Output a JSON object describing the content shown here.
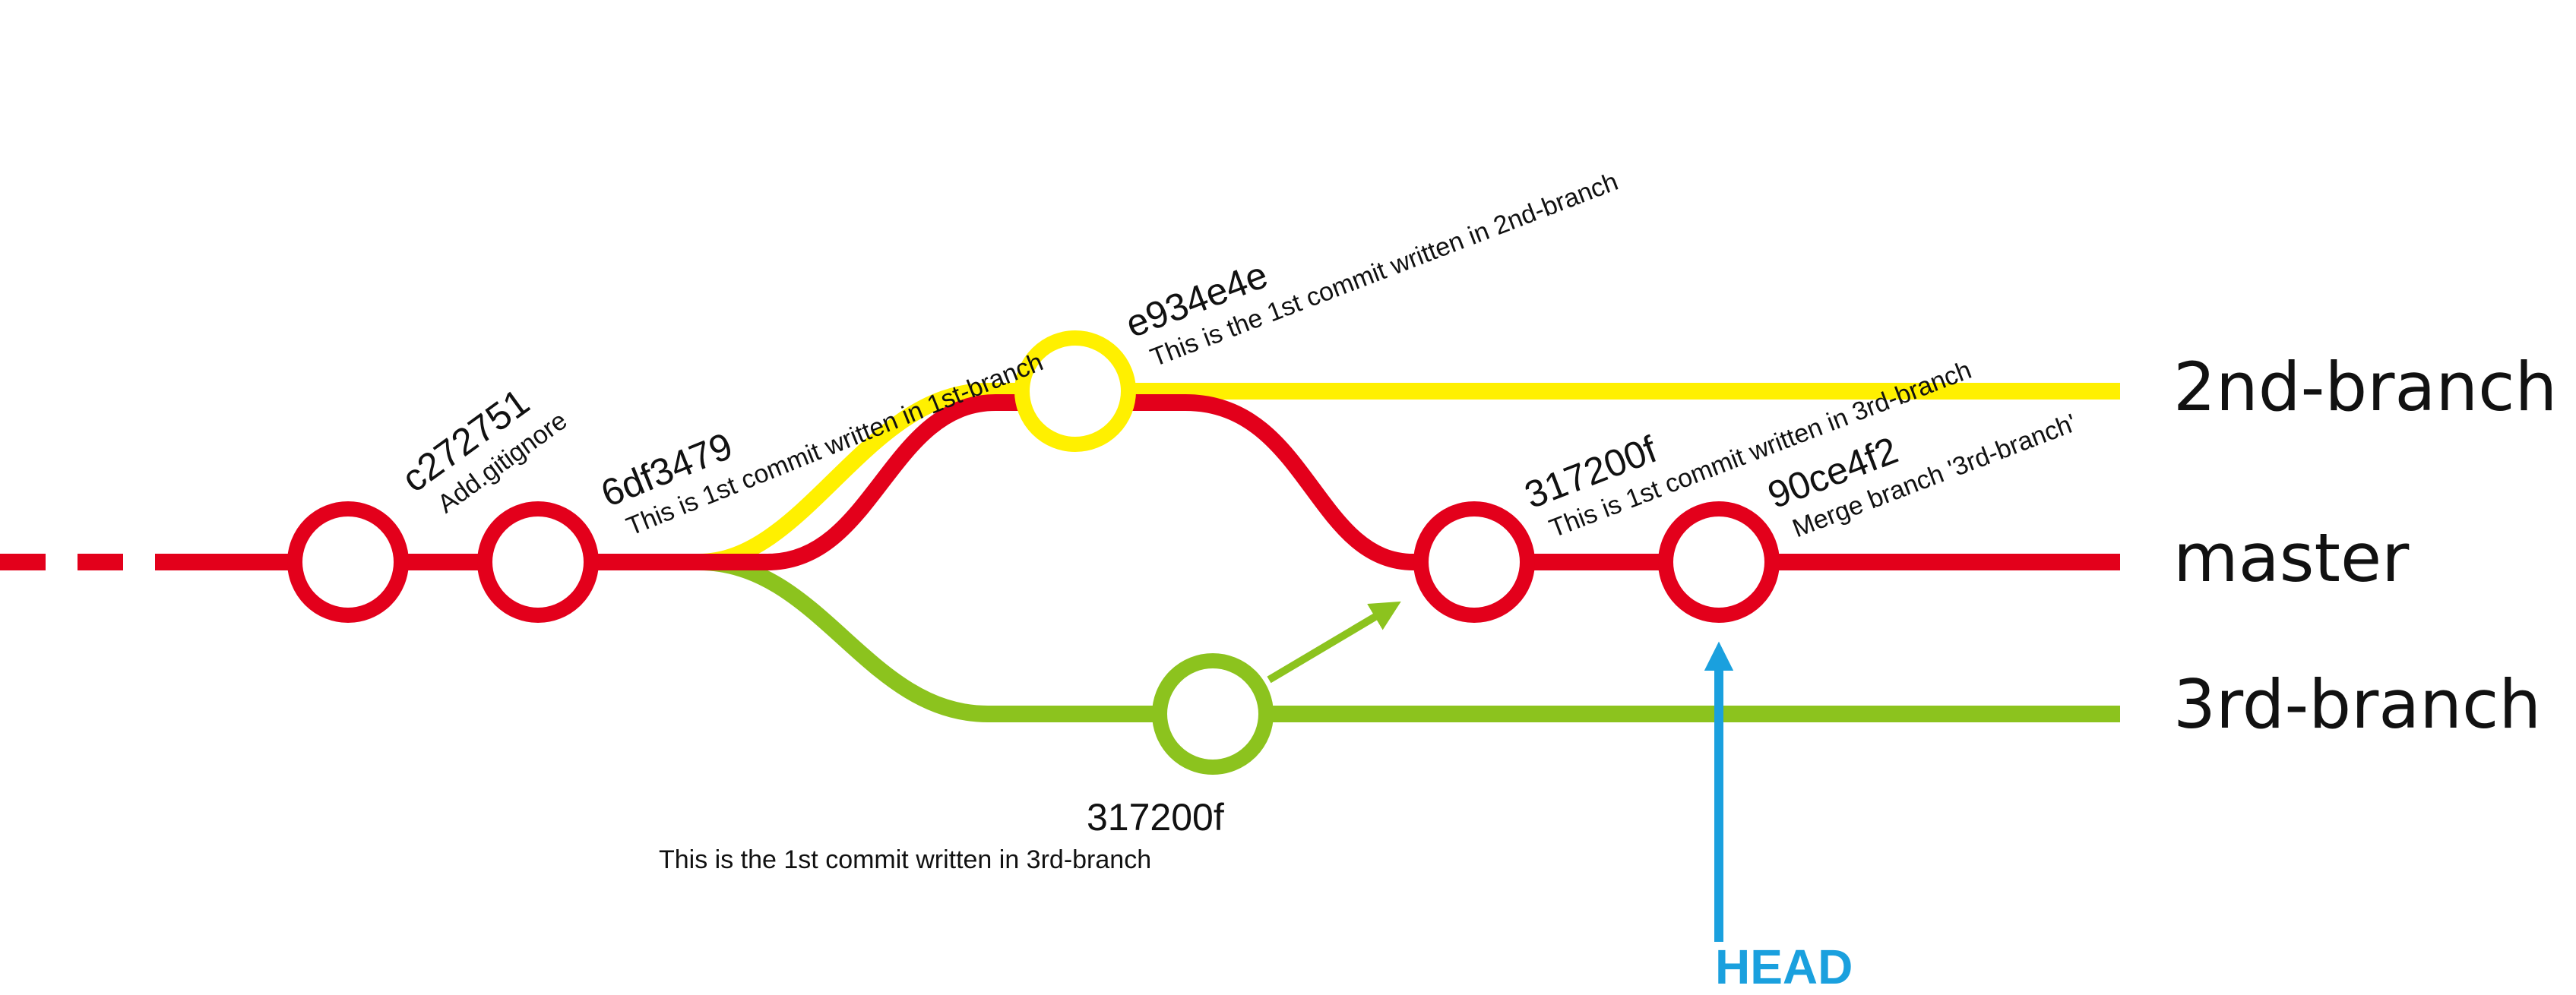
{
  "colors": {
    "master": "#e3001b",
    "branch_2nd": "#fff000",
    "branch_3rd": "#8cc31e",
    "head": "#1aa0de",
    "text": "#111111"
  },
  "branches": {
    "second": "2nd-branch",
    "master": "master",
    "third": "3rd-branch"
  },
  "head_label": "HEAD",
  "commits": [
    {
      "id": "c1",
      "hash": "c272751",
      "message": "Add.gitignore",
      "branch": "master"
    },
    {
      "id": "c2",
      "hash": "6df3479",
      "message": "This is 1st commit written in 1st-branch",
      "branch": "master"
    },
    {
      "id": "c3",
      "hash": "e934e4e",
      "message": "This is the 1st commit written in 2nd-branch",
      "branch": "2nd-branch"
    },
    {
      "id": "c4",
      "hash": "317200f",
      "message": "This is the 1st commit written in 3rd-branch",
      "branch": "3rd-branch"
    },
    {
      "id": "c5",
      "hash": "317200f",
      "message": "This is 1st commit written in 3rd-branch",
      "branch": "master"
    },
    {
      "id": "c6",
      "hash": "90ce4f2",
      "message": "Merge branch '3rd-branch'",
      "branch": "master"
    }
  ]
}
